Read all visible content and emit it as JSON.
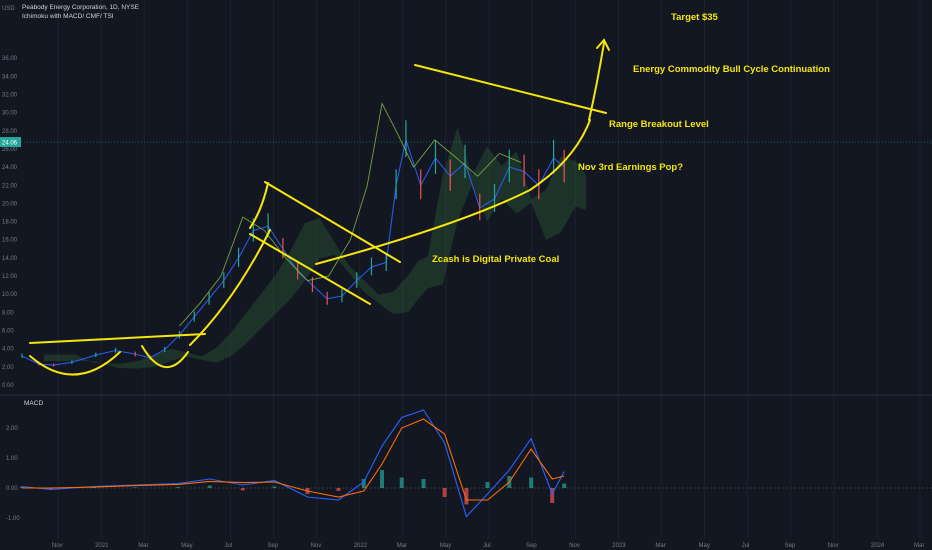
{
  "header": {
    "title": "Peabody Energy Corporation, 1D, NYSE",
    "indicators": "Ichimoku with MACD/ CMF/ TSI",
    "currency": "USD",
    "macd_label": "MACD"
  },
  "price_tag": "24.06",
  "annotations": [
    {
      "id": "target",
      "text": "Target $35"
    },
    {
      "id": "bull",
      "text": "Energy Commodity Bull Cycle Continuation"
    },
    {
      "id": "breakout",
      "text": "Range Breakout Level"
    },
    {
      "id": "earnings",
      "text": "Nov 3rd Earnings Pop?"
    },
    {
      "id": "zcash",
      "text": "Zcash is Digital Private Coal"
    }
  ],
  "chart_data": {
    "type": "line",
    "title": "Peabody Energy Corporation, 1D, NYSE",
    "price_axis": {
      "ticks": [
        "0.00",
        "2.00",
        "4.00",
        "6.00",
        "8.00",
        "10.00",
        "12.00",
        "14.00",
        "16.00",
        "18.00",
        "20.00",
        "22.00",
        "24.00",
        "26.00",
        "28.00",
        "30.00",
        "32.00",
        "34.00",
        "36.00"
      ],
      "ylim": [
        -1,
        37
      ]
    },
    "macd_axis": {
      "ticks": [
        "2.00",
        "1.00",
        "0.00",
        "-1.00"
      ],
      "ylim": [
        -1.4,
        2.6
      ]
    },
    "x_ticks": [
      "Nov",
      "2021",
      "Mar",
      "May",
      "Jul",
      "Sep",
      "Nov",
      "2022",
      "Mar",
      "May",
      "Jul",
      "Sep",
      "Nov",
      "2023",
      "Mar",
      "May",
      "Jul",
      "Sep",
      "Nov",
      "2024",
      "Mar"
    ],
    "x_range": [
      "2020-09-21",
      "2024-03-31"
    ],
    "series": [
      {
        "name": "Close",
        "x": [
          "2020-09-21",
          "2020-10-15",
          "2020-11-05",
          "2020-12-01",
          "2021-01-04",
          "2021-02-01",
          "2021-03-01",
          "2021-03-22",
          "2021-04-12",
          "2021-05-03",
          "2021-05-24",
          "2021-06-14",
          "2021-07-05",
          "2021-07-26",
          "2021-08-16",
          "2021-09-06",
          "2021-09-27",
          "2021-10-18",
          "2021-11-08",
          "2021-11-29",
          "2021-12-20",
          "2022-01-10",
          "2022-01-31",
          "2022-02-21",
          "2022-03-07",
          "2022-03-21",
          "2022-04-11",
          "2022-05-02",
          "2022-05-23",
          "2022-06-13",
          "2022-07-04",
          "2022-07-25",
          "2022-08-15",
          "2022-09-05",
          "2022-09-26",
          "2022-10-17",
          "2022-11-01"
        ],
        "values": [
          3.2,
          2.3,
          2.2,
          2.5,
          3.3,
          3.8,
          3.4,
          3.0,
          3.9,
          5.5,
          7.5,
          9.5,
          11.5,
          14.0,
          17.0,
          17.5,
          15.0,
          12.5,
          11.0,
          9.5,
          9.8,
          11.5,
          13.0,
          13.5,
          22.0,
          27.0,
          22.0,
          25.0,
          23.0,
          24.5,
          19.5,
          20.5,
          24.0,
          23.5,
          22.0,
          25.0,
          24.0
        ]
      },
      {
        "name": "Lagging",
        "x": [
          "2021-05-03",
          "2021-06-01",
          "2021-07-01",
          "2021-08-01",
          "2021-09-01",
          "2021-10-01",
          "2021-11-01",
          "2021-12-01",
          "2022-01-01",
          "2022-01-25",
          "2022-02-15",
          "2022-03-07",
          "2022-04-01",
          "2022-05-01",
          "2022-06-01",
          "2022-07-01",
          "2022-08-01",
          "2022-09-01"
        ],
        "values": [
          6.5,
          9.0,
          12.0,
          18.5,
          17.0,
          14.0,
          11.5,
          12.0,
          16.0,
          22.0,
          31.0,
          28.0,
          24.0,
          27.0,
          25.0,
          23.0,
          25.5,
          24.5
        ]
      }
    ],
    "macd": {
      "x": [
        "2020-09-21",
        "2020-11-01",
        "2021-01-01",
        "2021-03-01",
        "2021-05-01",
        "2021-06-15",
        "2021-08-01",
        "2021-09-15",
        "2021-11-01",
        "2021-12-15",
        "2022-01-20",
        "2022-02-15",
        "2022-03-15",
        "2022-04-15",
        "2022-05-15",
        "2022-06-15",
        "2022-07-15",
        "2022-08-15",
        "2022-09-15",
        "2022-10-15",
        "2022-11-01"
      ],
      "macd_values": [
        0.05,
        -0.05,
        0.05,
        0.1,
        0.15,
        0.3,
        0.1,
        0.25,
        -0.3,
        -0.4,
        0.2,
        1.4,
        2.35,
        2.6,
        1.5,
        -0.95,
        -0.2,
        0.6,
        1.65,
        -0.2,
        0.55
      ],
      "signal_values": [
        0.0,
        0.0,
        0.03,
        0.08,
        0.12,
        0.22,
        0.18,
        0.2,
        -0.1,
        -0.3,
        -0.1,
        0.8,
        2.0,
        2.3,
        1.8,
        -0.4,
        -0.4,
        0.2,
        1.3,
        0.3,
        0.4
      ]
    }
  }
}
